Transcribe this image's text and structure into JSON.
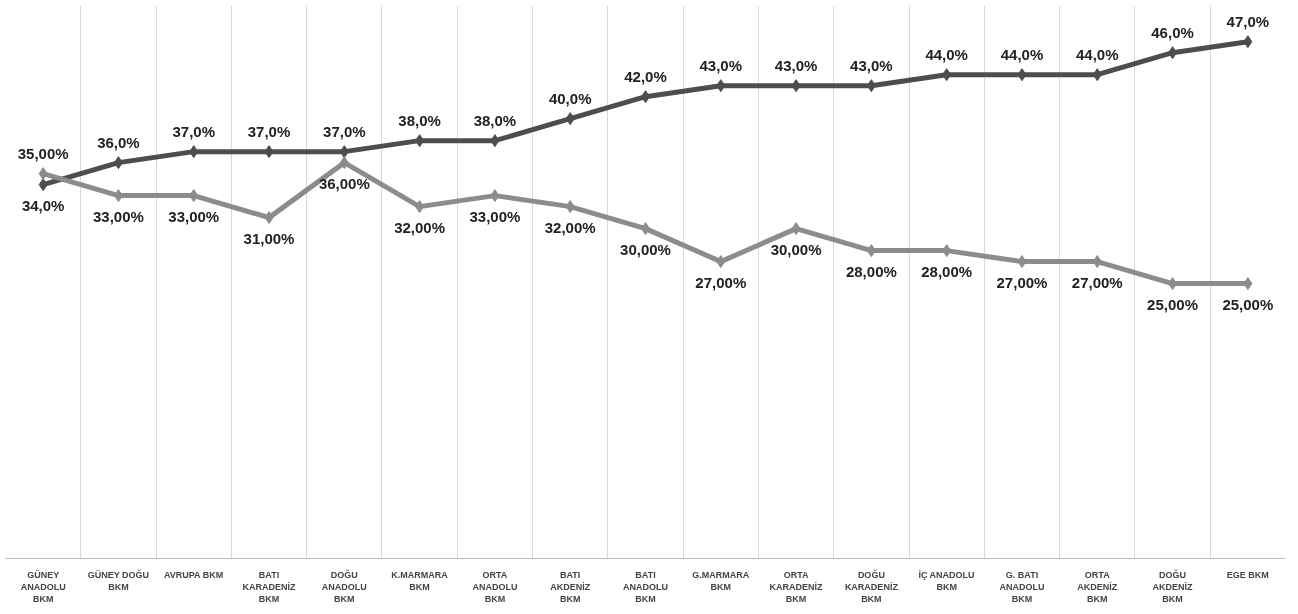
{
  "chart_data": {
    "type": "line",
    "categories": [
      "GÜNEY ANADOLU BKM",
      "GÜNEY DOĞU BKM",
      "AVRUPA BKM",
      "BATI KARADENİZ BKM",
      "DOĞU ANADOLU BKM",
      "K.MARMARA BKM",
      "ORTA ANADOLU BKM",
      "BATI AKDENİZ BKM",
      "BATI ANADOLU BKM",
      "G.MARMARA BKM",
      "ORTA KARADENİZ BKM",
      "DOĞU KARADENİZ BKM",
      "İÇ ANADOLU BKM",
      "G. BATI ANADOLU BKM",
      "ORTA AKDENİZ BKM",
      "DOĞU AKDENİZ BKM",
      "EGE BKM"
    ],
    "series": [
      {
        "color": "#4d4d4d",
        "values": [
          34,
          36,
          37,
          37,
          37,
          38,
          38,
          40,
          42,
          43,
          43,
          43,
          44,
          44,
          44,
          46,
          47
        ],
        "value_labels": [
          "34,0%",
          "36,0%",
          "37,0%",
          "37,0%",
          "37,0%",
          "38,0%",
          "38,0%",
          "40,0%",
          "42,0%",
          "43,0%",
          "43,0%",
          "43,0%",
          "44,0%",
          "44,0%",
          "44,0%",
          "46,0%",
          "47,0%"
        ]
      },
      {
        "color": "#8c8c8c",
        "values": [
          35,
          33,
          33,
          31,
          36,
          32,
          33,
          32,
          30,
          27,
          30,
          28,
          28,
          27,
          27,
          25,
          25
        ],
        "value_labels": [
          "35,00%",
          "33,00%",
          "33,00%",
          "31,00%",
          "36,00%",
          "32,00%",
          "33,00%",
          "32,00%",
          "30,00%",
          "27,00%",
          "30,00%",
          "28,00%",
          "28,00%",
          "27,00%",
          "27,00%",
          "25,00%",
          "25,00%"
        ]
      }
    ],
    "marker": "diamond",
    "line_style": "solid",
    "grid": "x"
  }
}
